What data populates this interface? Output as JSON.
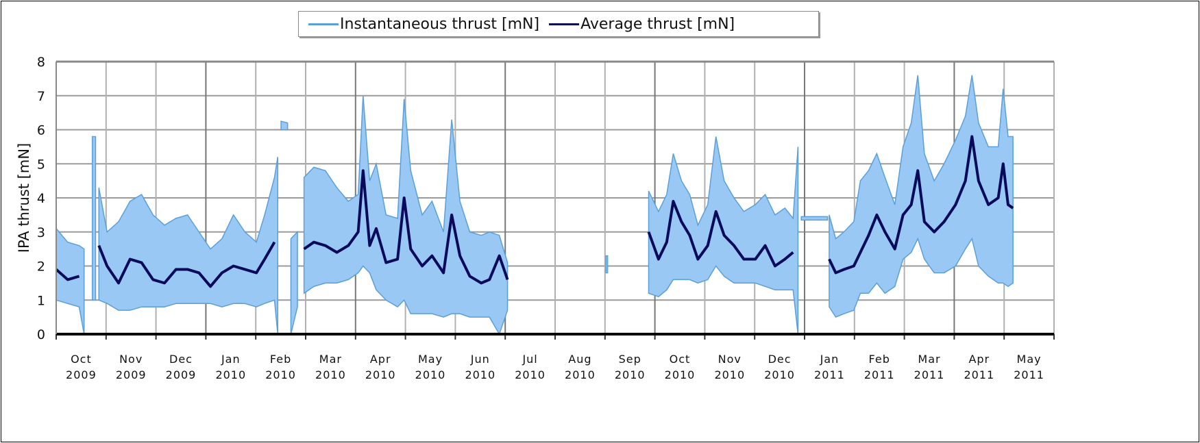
{
  "chart_data": {
    "type": "line",
    "title": "",
    "xlabel": "",
    "ylabel": "IPA thrust [mN]",
    "ylim": [
      0,
      8
    ],
    "yticks": [
      0,
      1,
      2,
      3,
      4,
      5,
      6,
      7,
      8
    ],
    "xlim": [
      "2009-10-01",
      "2011-06-01"
    ],
    "grid": true,
    "legend_placement": "top-center",
    "xtick_labels": [
      [
        "Oct",
        "2009"
      ],
      [
        "Nov",
        "2009"
      ],
      [
        "Dec",
        "2009"
      ],
      [
        "Jan",
        "2010"
      ],
      [
        "Feb",
        "2010"
      ],
      [
        "Mar",
        "2010"
      ],
      [
        "Apr",
        "2010"
      ],
      [
        "May",
        "2010"
      ],
      [
        "Jun",
        "2010"
      ],
      [
        "Jul",
        "2010"
      ],
      [
        "Aug",
        "2010"
      ],
      [
        "Sep",
        "2010"
      ],
      [
        "Oct",
        "2010"
      ],
      [
        "Nov",
        "2010"
      ],
      [
        "Dec",
        "2010"
      ],
      [
        "Jan",
        "2011"
      ],
      [
        "Feb",
        "2011"
      ],
      [
        "Mar",
        "2011"
      ],
      [
        "Apr",
        "2011"
      ],
      [
        "May",
        "2011"
      ]
    ],
    "series": [
      {
        "name": "Instantaneous thrust [mN]",
        "color": "#99c8f5",
        "edge_color": "#5a9fd8",
        "style": "min-max band"
      },
      {
        "name": "Average thrust [mN]",
        "color": "#0a0a5a",
        "style": "line"
      }
    ],
    "point_fields": [
      "date",
      "instantaneous_min",
      "instantaneous_max",
      "average"
    ],
    "segments": [
      [
        [
          "2009-10-01",
          1.0,
          3.1,
          1.9
        ],
        [
          "2009-10-08",
          0.9,
          2.7,
          1.6
        ],
        [
          "2009-10-15",
          0.8,
          2.6,
          1.7
        ],
        [
          "2009-10-18",
          0.0,
          2.5,
          null
        ]
      ],
      [
        [
          "2009-10-23",
          1.0,
          5.8,
          null
        ],
        [
          "2009-10-25",
          1.0,
          5.8,
          null
        ]
      ],
      [
        [
          "2009-10-27",
          1.0,
          4.3,
          2.6
        ],
        [
          "2009-11-01",
          0.9,
          3.0,
          2.0
        ],
        [
          "2009-11-08",
          0.7,
          3.3,
          1.5
        ],
        [
          "2009-11-15",
          0.7,
          3.9,
          2.2
        ],
        [
          "2009-11-22",
          0.8,
          4.1,
          2.1
        ],
        [
          "2009-11-29",
          0.8,
          3.5,
          1.6
        ],
        [
          "2009-12-06",
          0.8,
          3.2,
          1.5
        ],
        [
          "2009-12-13",
          0.9,
          3.4,
          1.9
        ],
        [
          "2009-12-20",
          0.9,
          3.5,
          1.9
        ],
        [
          "2009-12-27",
          0.9,
          3.0,
          1.8
        ],
        [
          "2010-01-03",
          0.9,
          2.5,
          1.4
        ],
        [
          "2010-01-10",
          0.8,
          2.8,
          1.8
        ],
        [
          "2010-01-17",
          0.9,
          3.5,
          2.0
        ],
        [
          "2010-01-24",
          0.9,
          3.0,
          1.9
        ],
        [
          "2010-01-31",
          0.8,
          2.7,
          1.8
        ],
        [
          "2010-02-05",
          0.9,
          3.5,
          2.2
        ],
        [
          "2010-02-11",
          1.0,
          4.6,
          2.7
        ],
        [
          "2010-02-13",
          0.0,
          5.2,
          null
        ]
      ],
      [
        [
          "2010-02-15",
          6.0,
          6.25,
          null
        ],
        [
          "2010-02-19",
          6.0,
          6.2,
          null
        ]
      ],
      [
        [
          "2010-02-21",
          0.0,
          2.8,
          null
        ],
        [
          "2010-02-25",
          0.8,
          3.0,
          null
        ]
      ],
      [
        [
          "2010-03-01",
          1.2,
          4.6,
          2.5
        ],
        [
          "2010-03-07",
          1.4,
          4.9,
          2.7
        ],
        [
          "2010-03-14",
          1.5,
          4.8,
          2.6
        ],
        [
          "2010-03-21",
          1.5,
          4.3,
          2.4
        ],
        [
          "2010-03-28",
          1.6,
          3.9,
          2.6
        ],
        [
          "2010-04-03",
          1.8,
          4.1,
          3.0
        ],
        [
          "2010-04-06",
          2.0,
          7.0,
          4.8
        ],
        [
          "2010-04-10",
          1.8,
          4.5,
          2.6
        ],
        [
          "2010-04-14",
          1.3,
          5.0,
          3.1
        ],
        [
          "2010-04-20",
          1.0,
          3.5,
          2.1
        ],
        [
          "2010-04-27",
          0.8,
          3.4,
          2.2
        ],
        [
          "2010-05-01",
          1.0,
          6.9,
          4.0
        ],
        [
          "2010-05-05",
          0.6,
          4.8,
          2.5
        ],
        [
          "2010-05-12",
          0.6,
          3.5,
          2.0
        ],
        [
          "2010-05-18",
          0.6,
          3.9,
          2.3
        ],
        [
          "2010-05-25",
          0.5,
          3.0,
          1.8
        ],
        [
          "2010-05-30",
          0.6,
          6.3,
          3.5
        ],
        [
          "2010-06-04",
          0.6,
          3.9,
          2.3
        ],
        [
          "2010-06-10",
          0.5,
          3.0,
          1.7
        ],
        [
          "2010-06-17",
          0.5,
          2.9,
          1.5
        ],
        [
          "2010-06-22",
          0.5,
          3.0,
          1.6
        ],
        [
          "2010-06-28",
          0.0,
          2.9,
          2.3
        ],
        [
          "2010-07-03",
          0.7,
          2.1,
          1.6
        ]
      ],
      [
        [
          "2010-09-01",
          1.8,
          2.3,
          null
        ],
        [
          "2010-09-02",
          1.8,
          2.3,
          null
        ]
      ],
      [
        [
          "2010-09-27",
          1.2,
          4.2,
          3.0
        ],
        [
          "2010-10-03",
          1.1,
          3.6,
          2.2
        ],
        [
          "2010-10-08",
          1.3,
          4.1,
          2.7
        ],
        [
          "2010-10-12",
          1.6,
          5.3,
          3.9
        ],
        [
          "2010-10-17",
          1.6,
          4.5,
          3.3
        ],
        [
          "2010-10-22",
          1.6,
          4.1,
          2.9
        ],
        [
          "2010-10-27",
          1.5,
          3.2,
          2.2
        ],
        [
          "2010-11-02",
          1.6,
          3.8,
          2.6
        ],
        [
          "2010-11-07",
          2.0,
          5.8,
          3.6
        ],
        [
          "2010-11-12",
          1.7,
          4.5,
          2.9
        ],
        [
          "2010-11-18",
          1.5,
          4.0,
          2.6
        ],
        [
          "2010-11-24",
          1.5,
          3.6,
          2.2
        ],
        [
          "2010-12-01",
          1.5,
          3.8,
          2.2
        ],
        [
          "2010-12-07",
          1.4,
          4.1,
          2.6
        ],
        [
          "2010-12-13",
          1.3,
          3.5,
          2.0
        ],
        [
          "2010-12-19",
          1.3,
          3.7,
          2.2
        ],
        [
          "2010-12-24",
          1.3,
          3.4,
          2.4
        ],
        [
          "2010-12-27",
          0.0,
          5.5,
          null
        ]
      ],
      [
        [
          "2010-12-29",
          3.35,
          3.45,
          null
        ],
        [
          "2011-01-14",
          3.35,
          3.45,
          null
        ]
      ],
      [
        [
          "2011-01-15",
          0.8,
          3.5,
          2.2
        ],
        [
          "2011-01-19",
          0.5,
          2.8,
          1.8
        ],
        [
          "2011-01-24",
          0.6,
          3.0,
          1.9
        ],
        [
          "2011-01-30",
          0.7,
          3.3,
          2.0
        ],
        [
          "2011-02-03",
          1.2,
          4.5,
          2.4
        ],
        [
          "2011-02-08",
          1.2,
          4.8,
          2.9
        ],
        [
          "2011-02-13",
          1.5,
          5.3,
          3.5
        ],
        [
          "2011-02-18",
          1.2,
          4.6,
          3.0
        ],
        [
          "2011-02-24",
          1.4,
          3.8,
          2.5
        ],
        [
          "2011-03-01",
          2.2,
          5.5,
          3.5
        ],
        [
          "2011-03-06",
          2.4,
          6.2,
          3.8
        ],
        [
          "2011-03-10",
          2.8,
          7.6,
          4.8
        ],
        [
          "2011-03-14",
          2.2,
          5.3,
          3.3
        ],
        [
          "2011-03-20",
          1.8,
          4.5,
          3.0
        ],
        [
          "2011-03-26",
          1.8,
          5.0,
          3.3
        ],
        [
          "2011-04-02",
          2.0,
          5.7,
          3.8
        ],
        [
          "2011-04-08",
          2.5,
          6.4,
          4.5
        ],
        [
          "2011-04-12",
          2.8,
          7.6,
          5.8
        ],
        [
          "2011-04-16",
          2.0,
          6.2,
          4.5
        ],
        [
          "2011-04-22",
          1.7,
          5.5,
          3.8
        ],
        [
          "2011-04-28",
          1.5,
          5.5,
          4.0
        ],
        [
          "2011-05-01",
          1.5,
          7.2,
          5.0
        ],
        [
          "2011-05-04",
          1.4,
          5.8,
          3.8
        ],
        [
          "2011-05-07",
          1.5,
          5.8,
          3.7
        ]
      ]
    ]
  }
}
